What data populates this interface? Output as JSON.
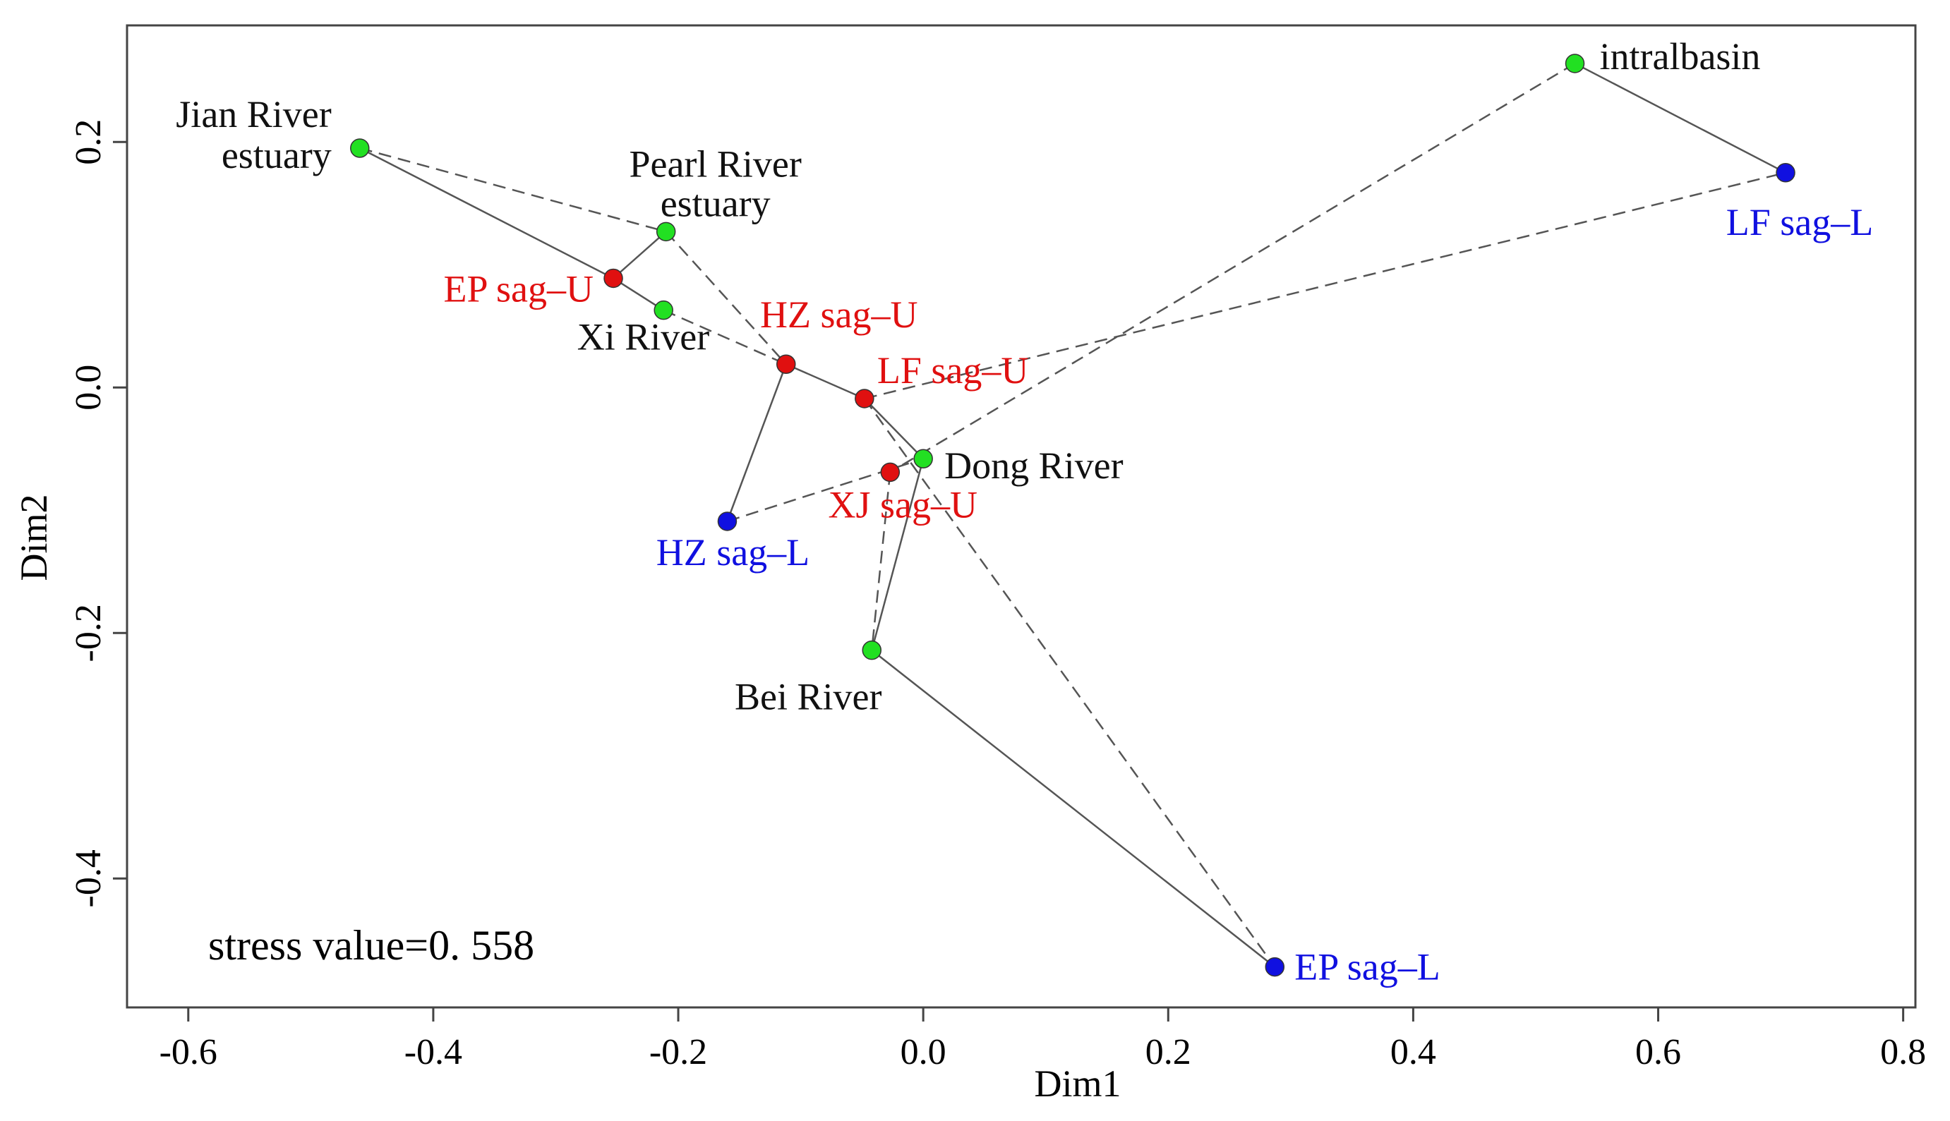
{
  "chart_data": {
    "type": "scatter",
    "title": "",
    "xlabel": "Dim1",
    "ylabel": "Dim2",
    "xlim": [
      -0.65,
      0.81
    ],
    "ylim": [
      -0.505,
      0.295
    ],
    "xticks": [
      -0.6,
      -0.4,
      -0.2,
      0.0,
      0.2,
      0.4,
      0.6,
      0.8
    ],
    "xtick_labels": [
      "-0.6",
      "-0.4",
      "-0.2",
      "0.0",
      "0.2",
      "0.4",
      "0.6",
      "0.8"
    ],
    "yticks": [
      -0.4,
      -0.2,
      0.0,
      0.2
    ],
    "ytick_labels": [
      "-0.4",
      "-0.2",
      "0.0",
      "0.2"
    ],
    "annotation": "stress  value=0. 558",
    "colors": {
      "river": "#22e022",
      "upper": "#e01010",
      "lower": "#1010e0",
      "line": "#555555"
    },
    "points": [
      {
        "id": "jian",
        "name": "Jian River estuary",
        "label": [
          "Jian River",
          "estuary"
        ],
        "group": "river",
        "x": -0.46,
        "y": 0.195
      },
      {
        "id": "pearl",
        "name": "Pearl River estuary",
        "label": [
          "Pearl River",
          "estuary"
        ],
        "group": "river",
        "x": -0.21,
        "y": 0.127
      },
      {
        "id": "xi",
        "name": "Xi River",
        "label": [
          "Xi River"
        ],
        "group": "river",
        "x": -0.212,
        "y": 0.063
      },
      {
        "id": "dong",
        "name": "Dong River",
        "label": [
          "Dong River"
        ],
        "group": "river",
        "x": 0.0,
        "y": -0.058
      },
      {
        "id": "bei",
        "name": "Bei River",
        "label": [
          "Bei River"
        ],
        "group": "river",
        "x": -0.042,
        "y": -0.214
      },
      {
        "id": "intra",
        "name": "intralbasin",
        "label": [
          "intralbasin"
        ],
        "group": "river",
        "x": 0.532,
        "y": 0.264
      },
      {
        "id": "ep_u",
        "name": "EP sag-U",
        "label": [
          "EP sag–U"
        ],
        "group": "upper",
        "x": -0.253,
        "y": 0.089
      },
      {
        "id": "hz_u",
        "name": "HZ sag-U",
        "label": [
          "HZ sag–U"
        ],
        "group": "upper",
        "x": -0.112,
        "y": 0.019
      },
      {
        "id": "lf_u",
        "name": "LF sag-U",
        "label": [
          "LF sag–U"
        ],
        "group": "upper",
        "x": -0.048,
        "y": -0.009
      },
      {
        "id": "xj_u",
        "name": "XJ sag-U",
        "label": [
          "XJ sag–U"
        ],
        "group": "upper",
        "x": -0.027,
        "y": -0.069
      },
      {
        "id": "hz_l",
        "name": "HZ sag-L",
        "label": [
          "HZ sag–L"
        ],
        "group": "lower",
        "x": -0.16,
        "y": -0.109
      },
      {
        "id": "lf_l",
        "name": "LF sag-L",
        "label": [
          "LF sag–L"
        ],
        "group": "lower",
        "x": 0.704,
        "y": 0.175
      },
      {
        "id": "ep_l",
        "name": "EP sag-L",
        "label": [
          "EP sag–L"
        ],
        "group": "lower",
        "x": 0.287,
        "y": -0.472
      }
    ],
    "solid_links": [
      [
        "jian",
        "ep_u"
      ],
      [
        "ep_u",
        "pearl"
      ],
      [
        "ep_u",
        "xi"
      ],
      [
        "hz_u",
        "lf_u"
      ],
      [
        "lf_u",
        "dong"
      ],
      [
        "hz_u",
        "hz_l"
      ],
      [
        "dong",
        "bei"
      ],
      [
        "bei",
        "ep_l"
      ],
      [
        "intra",
        "lf_l"
      ]
    ],
    "dashed_links": [
      [
        "jian",
        "pearl"
      ],
      [
        "pearl",
        "hz_u"
      ],
      [
        "xi",
        "hz_u"
      ],
      [
        "lf_u",
        "lf_l"
      ],
      [
        "intra",
        "xj_u"
      ],
      [
        "hz_l",
        "dong"
      ],
      [
        "lf_u",
        "ep_l"
      ],
      [
        "xj_u",
        "bei"
      ]
    ]
  }
}
